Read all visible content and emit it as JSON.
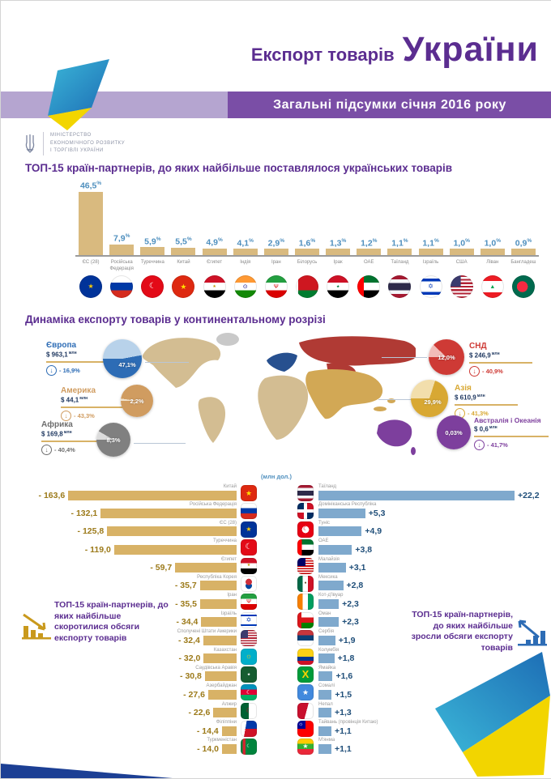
{
  "header": {
    "title_prefix": "Експорт товарів",
    "title_main": "України",
    "subtitle": "Загальні підсумки січня 2016 року",
    "accent_purple": "#5b2d90",
    "bar_light_purple": "#b5a5d0",
    "bar_dark_purple": "#7a4ea6"
  },
  "ministry": {
    "line1": "МІНІСТЕРСТВО",
    "line2": "ЕКОНОМІЧНОГО РОЗВИТКУ",
    "line3": "І ТОРГІВЛІ УКРАЇНИ"
  },
  "sections": {
    "top15_title": "ТОП-15 країн-партнерів, до яких найбільше поставлялося українських товарів",
    "dynamics_title": "Динаміка експорту товарів у континентальному розрізі",
    "unit_label": "(млн дол.)",
    "decrease_caption": "ТОП-15 країн-партнерів, до яких найбільше скоротилися обсяги експорту товарів",
    "increase_caption": "ТОП-15 країн-партнерів, до яких найбільше зросли обсяги експорту товарів"
  },
  "decor_colors": {
    "ribbon_teal": "#3bb7d8",
    "ribbon_blue": "#1d6db5",
    "ribbon_yellow": "#f2d500",
    "corner_navy": "#1c3f94"
  },
  "chart_data": [
    {
      "type": "bar",
      "id": "top15_share",
      "title": "ТОП-15 країн-партнерів, до яких найбільше поставлялося українських товарів",
      "unit": "%",
      "categories": [
        "ЄС (28)",
        "Російська Федерація",
        "Туреччина",
        "Китай",
        "Єгипет",
        "Індія",
        "Іран",
        "Білорусь",
        "Ірак",
        "ОАЕ",
        "Таїланд",
        "Ізраїль",
        "США",
        "Ліван",
        "Бангладеш"
      ],
      "values": [
        46.5,
        7.9,
        5.9,
        5.5,
        4.9,
        4.1,
        2.9,
        1.6,
        1.3,
        1.2,
        1.1,
        1.1,
        1.0,
        1.0,
        0.9
      ],
      "labels": [
        "46,5",
        "7,9",
        "5,9",
        "5,5",
        "4,9",
        "4,1",
        "2,9",
        "1,6",
        "1,3",
        "1,2",
        "1,1",
        "1,1",
        "1,0",
        "1,0",
        "0,9"
      ],
      "flags": [
        "eu",
        "russia",
        "turkey",
        "china",
        "egypt",
        "india",
        "iran",
        "belarus",
        "iraq",
        "uae",
        "thailand",
        "israel",
        "usa",
        "lebanon",
        "bangladesh"
      ],
      "bar_color": "#d9ba7f",
      "value_color": "#4e8fbe"
    },
    {
      "type": "pie",
      "id": "continents",
      "title": "Динаміка експорту товарів у континентальному розрізі",
      "slices": [
        {
          "name": "Європа",
          "value": "$ 963,1",
          "unit": "млн",
          "share_label": "47,1%",
          "share_pct": 47.1,
          "change_label": "- 16,9%",
          "color": "#2d6cb5",
          "pale": "#b8d2ea"
        },
        {
          "name": "Америка",
          "value": "$ 44,1",
          "unit": "млн",
          "share_label": "2,2%",
          "share_pct": 2.2,
          "change_label": "- 43,3%",
          "color": "#d09c60",
          "pale": "#f0e2cd"
        },
        {
          "name": "Африка",
          "value": "$ 169,8",
          "unit": "млн",
          "share_label": "8,3%",
          "share_pct": 8.3,
          "change_label": "- 40,4%",
          "color": "#808080",
          "pale": "#dcdcdc"
        },
        {
          "name": "СНД",
          "value": "$ 246,9",
          "unit": "млн",
          "share_label": "12,0%",
          "share_pct": 12.0,
          "change_label": "- 40,9%",
          "color": "#ce3a35",
          "pale": "#f2bcb8"
        },
        {
          "name": "Азія",
          "value": "$ 610,9",
          "unit": "млн",
          "share_label": "29,9%",
          "share_pct": 29.9,
          "change_label": "- 41,3%",
          "color": "#d8a833",
          "pale": "#f2deac"
        },
        {
          "name": "Австралія і Океанія",
          "value": "$ 0,6",
          "unit": "млн",
          "share_label": "0,03%",
          "share_pct": 0.03,
          "change_label": "- 41,7%",
          "color": "#7d3f9d",
          "pale": "#dec7ef"
        }
      ]
    },
    {
      "type": "bar",
      "orientation": "horizontal",
      "id": "top15_decrease",
      "title": "ТОП-15 країн-партнерів, до яких найбільше скоротилися обсяги експорту товарів",
      "unit": "млн дол.",
      "categories": [
        "Китай",
        "Російська Федерація",
        "ЄС (28)",
        "Туреччина",
        "Єгипет",
        "Республіка Корея",
        "Іран",
        "Ізраїль",
        "Сполучені Штати Америки",
        "Казахстан",
        "Саудівська Аравія",
        "Азербайджан",
        "Алжир",
        "Філіппіни",
        "Туркменістан"
      ],
      "values": [
        -163.6,
        -132.1,
        -125.8,
        -119.0,
        -59.7,
        -35.7,
        -35.5,
        -34.4,
        -32.4,
        -32.0,
        -30.8,
        -27.6,
        -22.6,
        -14.4,
        -14.0
      ],
      "labels": [
        "- 163,6",
        "- 132,1",
        "- 125,8",
        "- 119,0",
        "- 59,7",
        "- 35,7",
        "- 35,5",
        "- 34,4",
        "- 32,4",
        "- 32,0",
        "- 30,8",
        "- 27,6",
        "- 22,6",
        "- 14,4",
        "- 14,0"
      ],
      "flags": [
        "china",
        "russia",
        "eu",
        "turkey",
        "egypt",
        "south-korea",
        "iran",
        "israel",
        "usa",
        "kazakhstan",
        "saudi-arabia",
        "azerbaijan",
        "algeria",
        "philippines",
        "turkmenistan"
      ],
      "bar_color": "#d8b266",
      "value_color": "#9c7a1a"
    },
    {
      "type": "bar",
      "orientation": "horizontal",
      "id": "top15_increase",
      "title": "ТОП-15 країн-партнерів, до яких найбільше зросли обсяги експорту товарів",
      "unit": "млн дол.",
      "categories": [
        "Таїланд",
        "Домініканська Республіка",
        "Туніс",
        "ОАЕ",
        "Малайзія",
        "Мексика",
        "Кот-д'Івуар",
        "Оман",
        "Сербія",
        "Колумбія",
        "Ямайка",
        "Сомалі",
        "Непал",
        "Тайвань (провінція Китаю)",
        "М'янма"
      ],
      "values": [
        22.2,
        5.3,
        4.9,
        3.8,
        3.1,
        2.8,
        2.3,
        2.3,
        1.9,
        1.8,
        1.6,
        1.5,
        1.3,
        1.1,
        1.1
      ],
      "labels": [
        "+22,2",
        "+5,3",
        "+4,9",
        "+3,8",
        "+3,1",
        "+2,8",
        "+2,3",
        "+2,3",
        "+1,9",
        "+1,8",
        "+1,6",
        "+1,5",
        "+1,3",
        "+1,1",
        "+1,1"
      ],
      "flags": [
        "thailand",
        "dominican-republic",
        "tunisia",
        "uae",
        "malaysia",
        "mexico",
        "cote-divoire",
        "oman",
        "serbia",
        "colombia",
        "jamaica",
        "somalia",
        "nepal",
        "taiwan",
        "myanmar"
      ],
      "bar_color": "#7fa9cd",
      "value_color": "#1f4e79"
    }
  ]
}
